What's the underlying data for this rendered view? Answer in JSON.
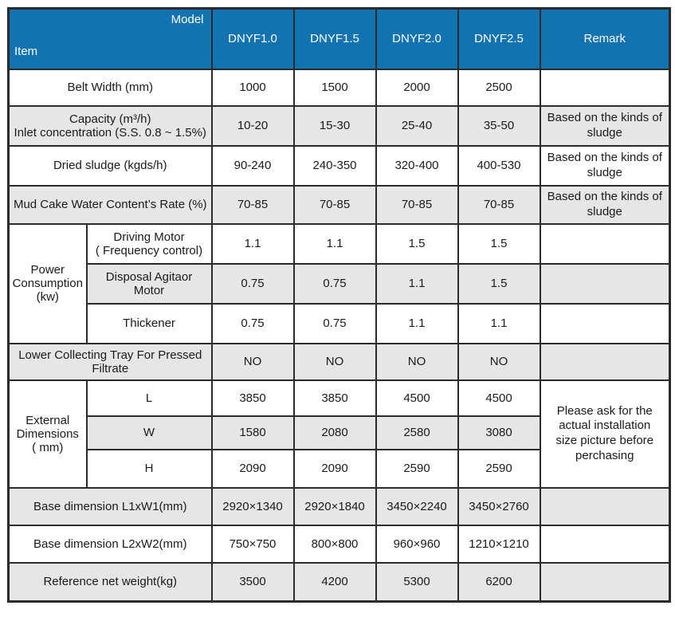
{
  "colors": {
    "header_bg": "#1173af",
    "header_text": "#ffffff",
    "stripe_bg": "#e6e6e6",
    "row_bg": "#ffffff",
    "border": "#2b2b2b"
  },
  "header": {
    "corner_top": "Model",
    "corner_bottom": "Item",
    "columns": [
      "DNYF1.0",
      "DNYF1.5",
      "DNYF2.0",
      "DNYF2.5",
      "Remark"
    ]
  },
  "rows": {
    "belt_width": {
      "label": "Belt Width  (mm)",
      "values": [
        "1000",
        "1500",
        "2000",
        "2500"
      ],
      "remark": ""
    },
    "capacity": {
      "label": "Capacity (m³/h)\nInlet concentration (S.S. 0.8 ~ 1.5%)",
      "values": [
        "10-20",
        "15-30",
        "25-40",
        "35-50"
      ],
      "remark": "Based on the kinds of\nsludge"
    },
    "dried_sludge": {
      "label": "Dried sludge (kgds/h)",
      "values": [
        "90-240",
        "240-350",
        "320-400",
        "400-530"
      ],
      "remark": "Based on the kinds of\nsludge"
    },
    "mud_cake": {
      "label": "Mud Cake Water Content’s Rate (%)",
      "values": [
        "70-85",
        "70-85",
        "70-85",
        "70-85"
      ],
      "remark": "Based on the kinds of\nsludge"
    },
    "power": {
      "group_label": "Power\nConsumption\n(kw)",
      "sub_rows": [
        {
          "label": "Driving Motor\n( Frequency control)",
          "values": [
            "1.1",
            "1.1",
            "1.5",
            "1.5"
          ],
          "remark": ""
        },
        {
          "label": "Disposal Agitaor\nMotor",
          "values": [
            "0.75",
            "0.75",
            "1.1",
            "1.5"
          ],
          "remark": ""
        },
        {
          "label": "Thickener",
          "values": [
            "0.75",
            "0.75",
            "1.1",
            "1.1"
          ],
          "remark": ""
        }
      ]
    },
    "lower_tray": {
      "label": "Lower Collecting Tray For Pressed\nFiltrate",
      "values": [
        "NO",
        "NO",
        "NO",
        "NO"
      ],
      "remark": ""
    },
    "external": {
      "group_label": "External\nDimensions\n( mm)",
      "remark": "Please ask for the\nactual installation\nsize picture before\nperchasing",
      "sub_rows": [
        {
          "label": "L",
          "values": [
            "3850",
            "3850",
            "4500",
            "4500"
          ]
        },
        {
          "label": "W",
          "values": [
            "1580",
            "2080",
            "2580",
            "3080"
          ]
        },
        {
          "label": "H",
          "values": [
            "2090",
            "2090",
            "2590",
            "2590"
          ]
        }
      ]
    },
    "base_l1w1": {
      "label": "Base dimension L1xW1(mm)",
      "values": [
        "2920×1340",
        "2920×1840",
        "3450×2240",
        "3450×2760"
      ],
      "remark": ""
    },
    "base_l2w2": {
      "label": "Base dimension L2xW2(mm)",
      "values": [
        "750×750",
        "800×800",
        "960×960",
        "1210×1210"
      ],
      "remark": ""
    },
    "net_weight": {
      "label": "Reference net weight(kg)",
      "values": [
        "3500",
        "4200",
        "5300",
        "6200"
      ],
      "remark": ""
    }
  }
}
